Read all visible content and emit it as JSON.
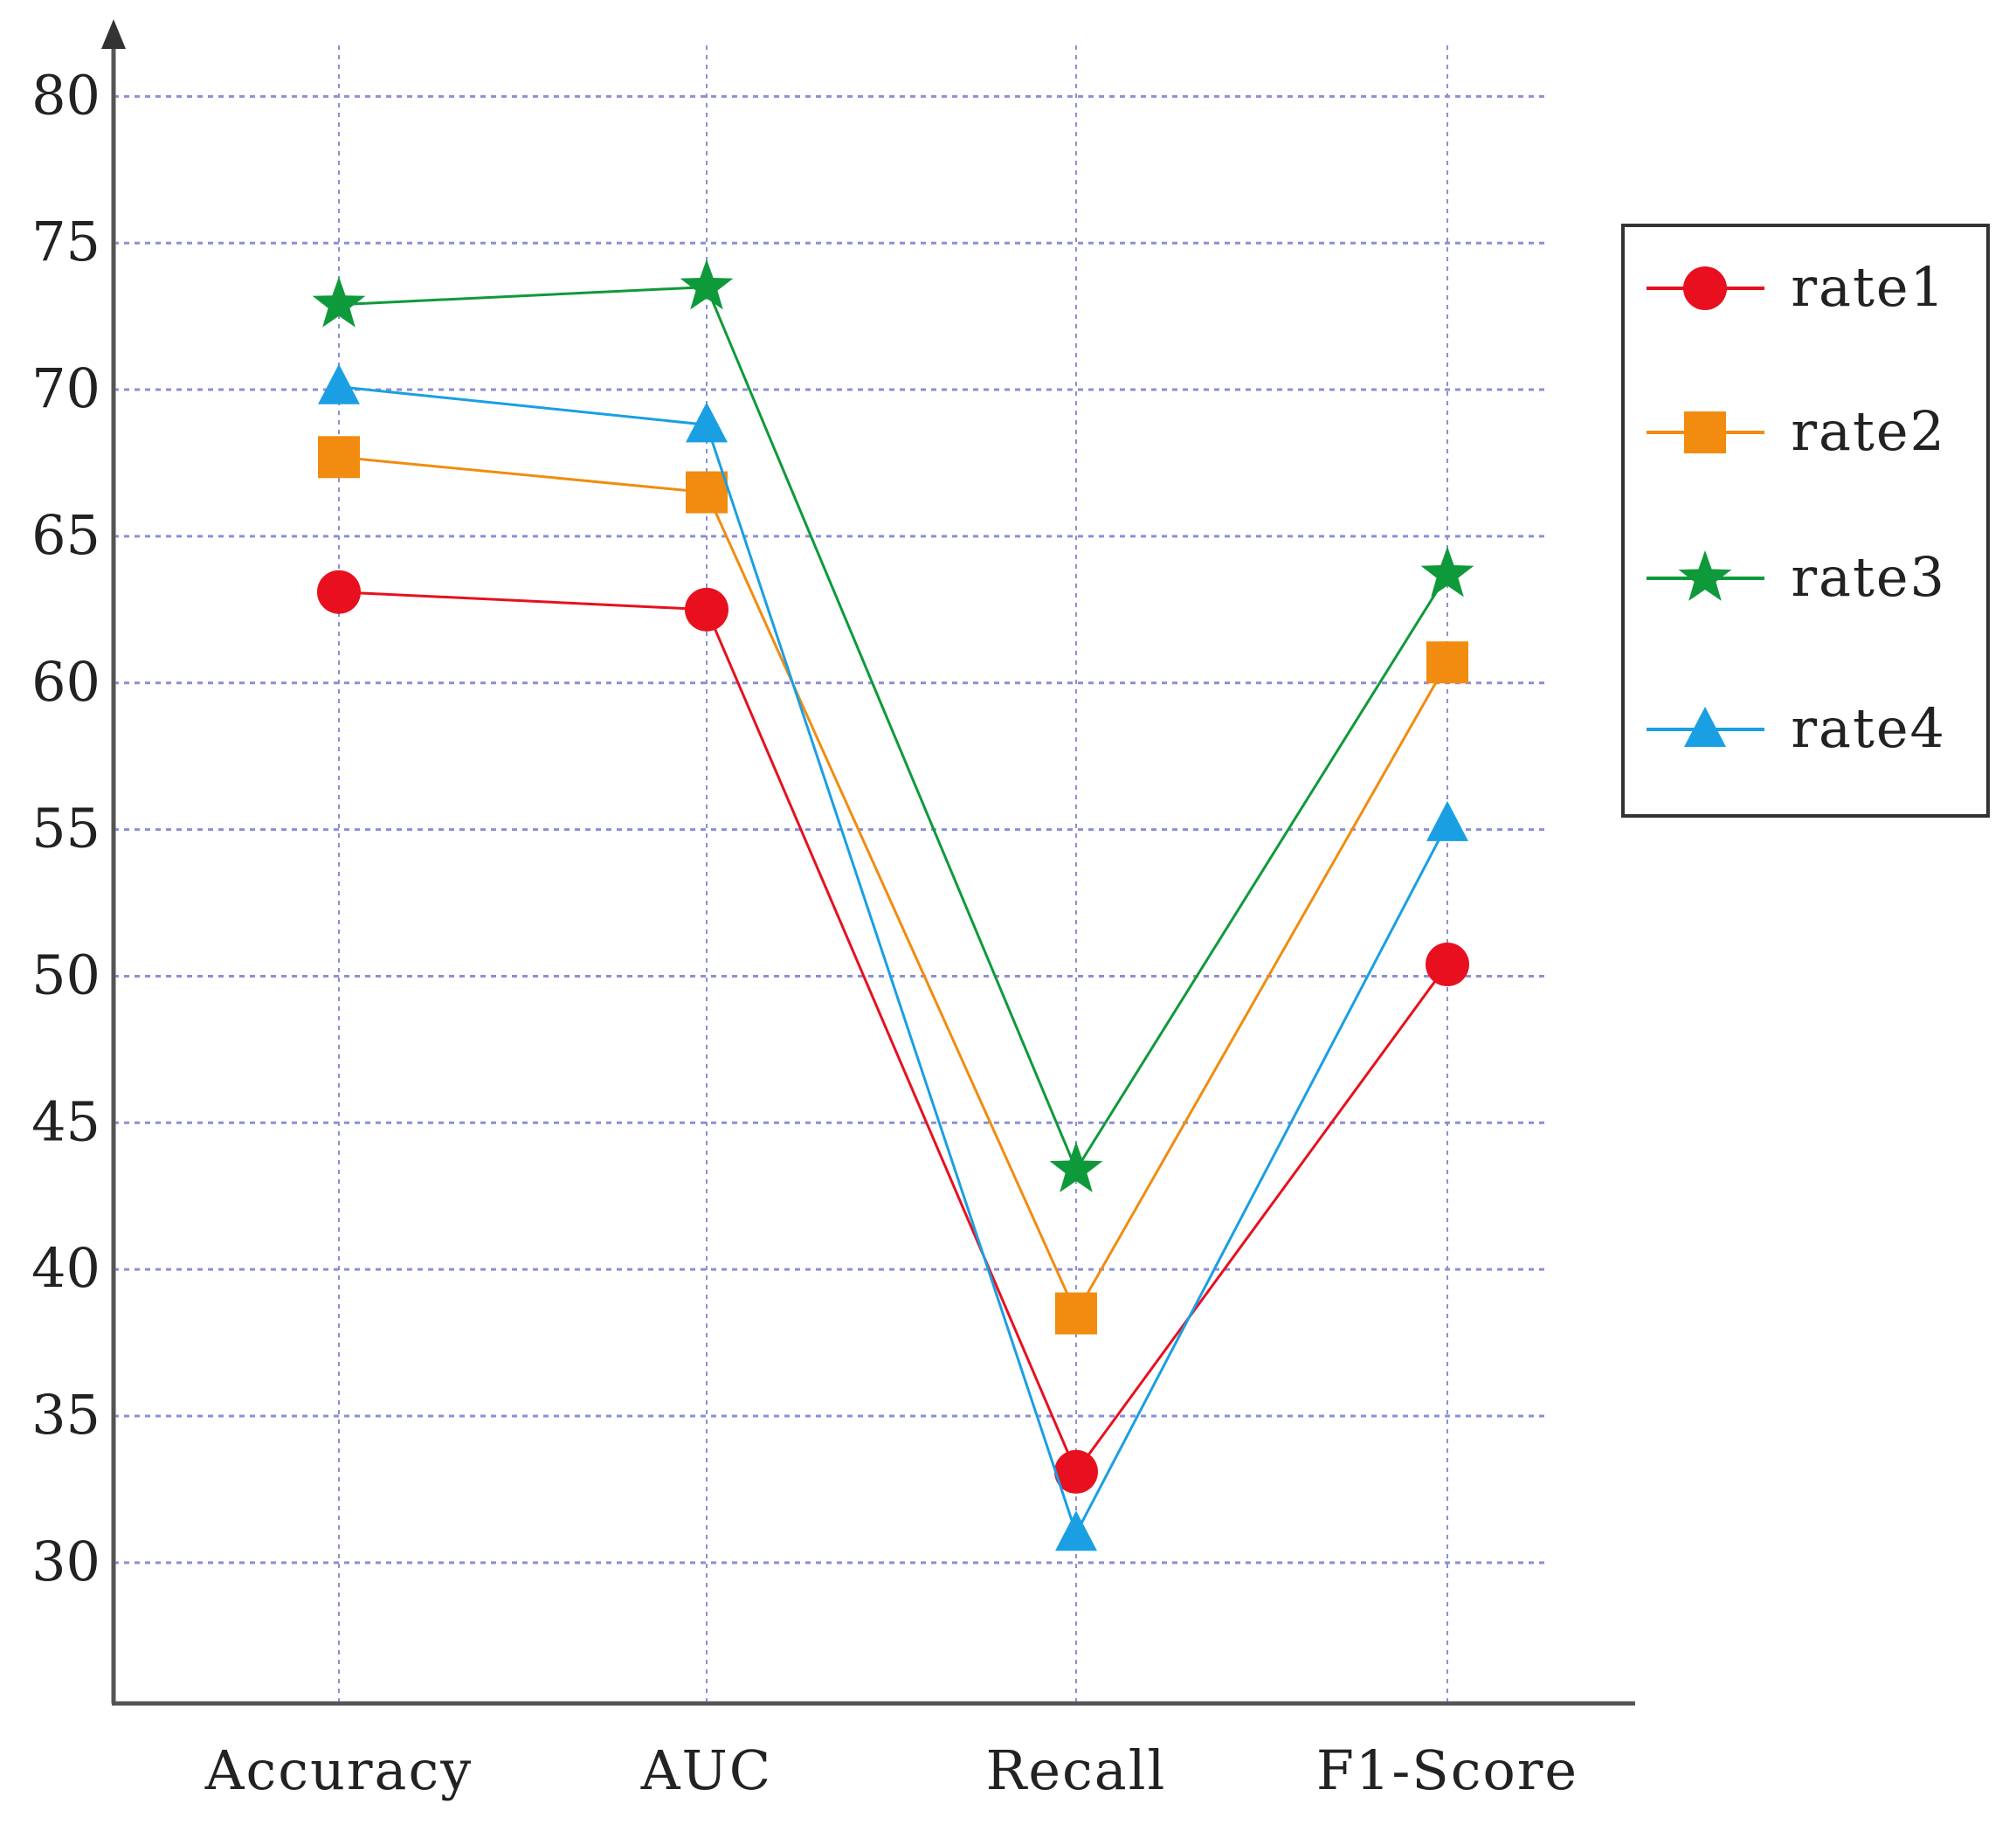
{
  "chart_data": {
    "type": "line",
    "title": "",
    "xlabel": "",
    "ylabel": "",
    "categories": [
      "Accuracy",
      "AUC",
      "Recall",
      "F1-Score"
    ],
    "yticks": [
      30,
      35,
      40,
      45,
      50,
      55,
      60,
      65,
      70,
      75,
      80
    ],
    "ylim": [
      25.2,
      81.5
    ],
    "grid": true,
    "legend_position": "right",
    "series": [
      {
        "name": "rate1",
        "color": "#e8101e",
        "marker": "circle",
        "values": [
          63.1,
          62.5,
          33.1,
          50.4
        ]
      },
      {
        "name": "rate2",
        "color": "#f18c10",
        "marker": "square",
        "values": [
          67.7,
          66.5,
          38.5,
          60.7
        ]
      },
      {
        "name": "rate3",
        "color": "#0e9a3a",
        "marker": "star",
        "values": [
          72.9,
          73.5,
          43.4,
          63.7
        ]
      },
      {
        "name": "rate4",
        "color": "#1a9fe3",
        "marker": "triangle",
        "values": [
          70.1,
          68.8,
          31.0,
          55.2
        ]
      }
    ]
  }
}
